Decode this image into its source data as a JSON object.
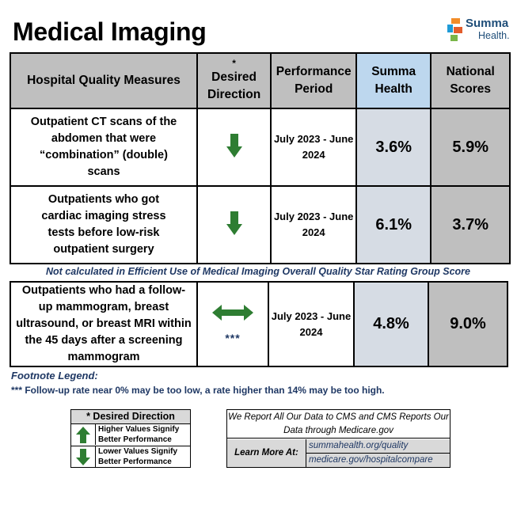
{
  "page": {
    "title": "Medical Imaging",
    "logo": {
      "line1": "Summa",
      "line2": "Health."
    }
  },
  "header": {
    "measures": "Hospital Quality Measures",
    "direction_star": "*",
    "direction": "Desired Direction",
    "period": "Performance Period",
    "summa": "Summa Health",
    "national": "National Scores"
  },
  "rows": [
    {
      "measure": "Outpatient CT scans of the abdomen that were “combination” (double) scans",
      "direction": "lower",
      "period": "July 2023 - June 2024",
      "summa": "3.6%",
      "national": "5.9%"
    },
    {
      "measure": "Outpatients who got cardiac imaging stress tests before low-risk outpatient surgery",
      "direction": "lower",
      "period": "July 2023 - June 2024",
      "summa": "6.1%",
      "national": "3.7%"
    }
  ],
  "note": "Not calculated in Efficient Use of Medical Imaging Overall Quality Star Rating Group Score",
  "row3": {
    "measure": "Outpatients who had a follow-up mammogram, breast ultrasound, or breast MRI within the 45 days after a screening mammogram",
    "direction": "range",
    "direction_mark": "***",
    "period": "July 2023 - June 2024",
    "summa": "4.8%",
    "national": "9.0%"
  },
  "footnote": {
    "title": "Footnote Legend:",
    "text": "*** Follow-up rate near 0% may be too low, a rate higher than 14% may be too high."
  },
  "legend": {
    "title": "* Desired Direction",
    "higher": "Higher Values Signify Better Performance",
    "lower": "Lower Values Signify Better Performance"
  },
  "report": {
    "text": "We Report All Our Data to CMS and CMS Reports Our Data through Medicare.gov",
    "learn": "Learn More At:",
    "link1": "summahealth.org/quality",
    "link2": "medicare.gov/hospitalcompare"
  },
  "colors": {
    "arrow_green": "#2e7d32",
    "header_gray": "#bfbfbf",
    "summa_header_blue": "#bdd7ee",
    "summa_cell": "#d6dce4",
    "note_navy": "#1f3864"
  }
}
